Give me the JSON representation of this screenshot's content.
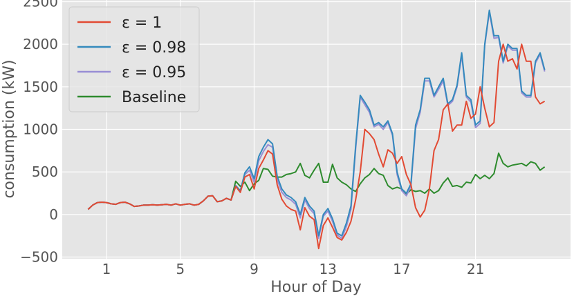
{
  "chart_data": {
    "type": "line",
    "xlabel": "Hour of Day",
    "ylabel": "consumption (kW)",
    "xlim": [
      -1.4,
      26.15
    ],
    "ylim": [
      -520,
      2520
    ],
    "xticks": [
      1,
      5,
      9,
      13,
      17,
      21
    ],
    "xtick_labels": [
      "1",
      "5",
      "9",
      "13",
      "17",
      "21"
    ],
    "yticks": [
      -500,
      0,
      500,
      1000,
      1500,
      2000,
      2500
    ],
    "ytick_labels": [
      "−500",
      "0",
      "500",
      "1000",
      "1500",
      "2000",
      "2500"
    ],
    "grid": true,
    "legend_position": "top-left",
    "x": [
      0.0,
      0.25,
      0.5,
      0.75,
      1.0,
      1.25,
      1.5,
      1.75,
      2.0,
      2.25,
      2.5,
      2.75,
      3.0,
      3.25,
      3.5,
      3.75,
      4.0,
      4.25,
      4.5,
      4.75,
      5.0,
      5.25,
      5.5,
      5.75,
      6.0,
      6.25,
      6.5,
      6.75,
      7.0,
      7.25,
      7.5,
      7.75,
      8.0,
      8.25,
      8.5,
      8.75,
      9.0,
      9.25,
      9.5,
      9.75,
      10.0,
      10.25,
      10.5,
      10.75,
      11.0,
      11.25,
      11.5,
      11.75,
      12.0,
      12.25,
      12.5,
      12.75,
      13.0,
      13.25,
      13.5,
      13.75,
      14.0,
      14.25,
      14.5,
      14.75,
      15.0,
      15.25,
      15.5,
      15.75,
      16.0,
      16.25,
      16.5,
      16.75,
      17.0,
      17.25,
      17.5,
      17.75,
      18.0,
      18.25,
      18.5,
      18.75,
      19.0,
      19.25,
      19.5,
      19.75,
      20.0,
      20.25,
      20.5,
      20.75,
      21.0,
      21.25,
      21.5,
      21.75,
      22.0,
      22.25,
      22.5,
      22.75,
      23.0,
      23.25,
      23.5,
      23.75,
      24.0,
      24.25,
      24.5,
      24.75
    ],
    "series": [
      {
        "name": "ε = 1",
        "color": "#E24A33",
        "values": [
          60,
          110,
          140,
          145,
          140,
          125,
          120,
          140,
          145,
          125,
          95,
          100,
          110,
          110,
          115,
          110,
          115,
          120,
          110,
          125,
          110,
          120,
          125,
          110,
          120,
          160,
          215,
          220,
          150,
          160,
          190,
          170,
          330,
          260,
          440,
          470,
          300,
          540,
          640,
          750,
          710,
          350,
          180,
          100,
          60,
          40,
          -180,
          80,
          -20,
          -60,
          -400,
          -130,
          -40,
          -150,
          -270,
          -300,
          -210,
          -80,
          170,
          500,
          1000,
          950,
          880,
          710,
          560,
          760,
          720,
          600,
          680,
          470,
          350,
          80,
          -30,
          50,
          300,
          750,
          880,
          1230,
          1300,
          980,
          1050,
          1050,
          1330,
          1130,
          1180,
          1500,
          1250,
          1030,
          1080,
          1800,
          2000,
          1800,
          1830,
          1710,
          2000,
          1800,
          1800,
          1380,
          1300,
          1330
        ],
        "segment_start_x": 6.75
      },
      {
        "name": "ε = 0.98",
        "color": "#348ABD",
        "values": [
          60,
          110,
          140,
          145,
          140,
          125,
          120,
          140,
          145,
          125,
          95,
          100,
          110,
          110,
          115,
          110,
          115,
          120,
          110,
          125,
          110,
          120,
          125,
          110,
          120,
          160,
          215,
          220,
          150,
          160,
          190,
          170,
          340,
          280,
          490,
          560,
          420,
          680,
          790,
          880,
          830,
          450,
          300,
          230,
          200,
          150,
          0,
          200,
          100,
          40,
          -250,
          0,
          70,
          -50,
          -220,
          -250,
          -100,
          100,
          800,
          1400,
          1320,
          1230,
          1050,
          1080,
          1030,
          1100,
          950,
          500,
          300,
          250,
          360,
          1050,
          1230,
          1600,
          1600,
          1400,
          1500,
          1600,
          1300,
          1350,
          1520,
          1900,
          1400,
          1350,
          1050,
          1100,
          2000,
          2400,
          2100,
          2100,
          1800,
          2000,
          1950,
          1950,
          1450,
          1400,
          1400,
          1800,
          1900,
          1700
        ],
        "segment_start_x": 6.75
      },
      {
        "name": "ε = 0.95",
        "color": "#988ED5",
        "values": [
          60,
          110,
          140,
          145,
          140,
          125,
          120,
          140,
          145,
          125,
          95,
          100,
          110,
          110,
          115,
          110,
          115,
          120,
          110,
          125,
          110,
          120,
          125,
          110,
          120,
          160,
          215,
          220,
          150,
          160,
          190,
          170,
          330,
          270,
          470,
          520,
          380,
          630,
          740,
          820,
          790,
          410,
          260,
          200,
          170,
          120,
          -40,
          170,
          70,
          10,
          -280,
          -20,
          40,
          -80,
          -240,
          -280,
          -140,
          60,
          760,
          1380,
          1290,
          1200,
          1030,
          1060,
          1000,
          1080,
          930,
          470,
          280,
          220,
          330,
          1010,
          1200,
          1570,
          1570,
          1380,
          1470,
          1570,
          1280,
          1330,
          1500,
          1870,
          1380,
          1320,
          1020,
          1070,
          1980,
          2380,
          2070,
          2080,
          1780,
          1980,
          1930,
          1930,
          1430,
          1380,
          1380,
          1780,
          1880,
          1680
        ],
        "segment_start_x": 6.75
      },
      {
        "name": "Baseline",
        "color": "#2E8B2E",
        "values": [
          60,
          110,
          140,
          145,
          140,
          125,
          120,
          140,
          145,
          125,
          95,
          100,
          110,
          110,
          115,
          110,
          115,
          120,
          110,
          125,
          110,
          120,
          125,
          110,
          120,
          160,
          215,
          220,
          150,
          160,
          190,
          170,
          390,
          330,
          380,
          280,
          360,
          400,
          540,
          530,
          450,
          440,
          440,
          470,
          480,
          500,
          600,
          460,
          430,
          520,
          600,
          380,
          380,
          590,
          430,
          380,
          350,
          300,
          270,
          360,
          430,
          470,
          540,
          480,
          460,
          340,
          300,
          320,
          300,
          240,
          290,
          270,
          280,
          250,
          300,
          250,
          280,
          370,
          430,
          330,
          340,
          320,
          380,
          370,
          470,
          420,
          460,
          420,
          480,
          720,
          600,
          560,
          580,
          590,
          600,
          570,
          620,
          600,
          520,
          560
        ],
        "segment_start_x": 6.75
      }
    ]
  }
}
